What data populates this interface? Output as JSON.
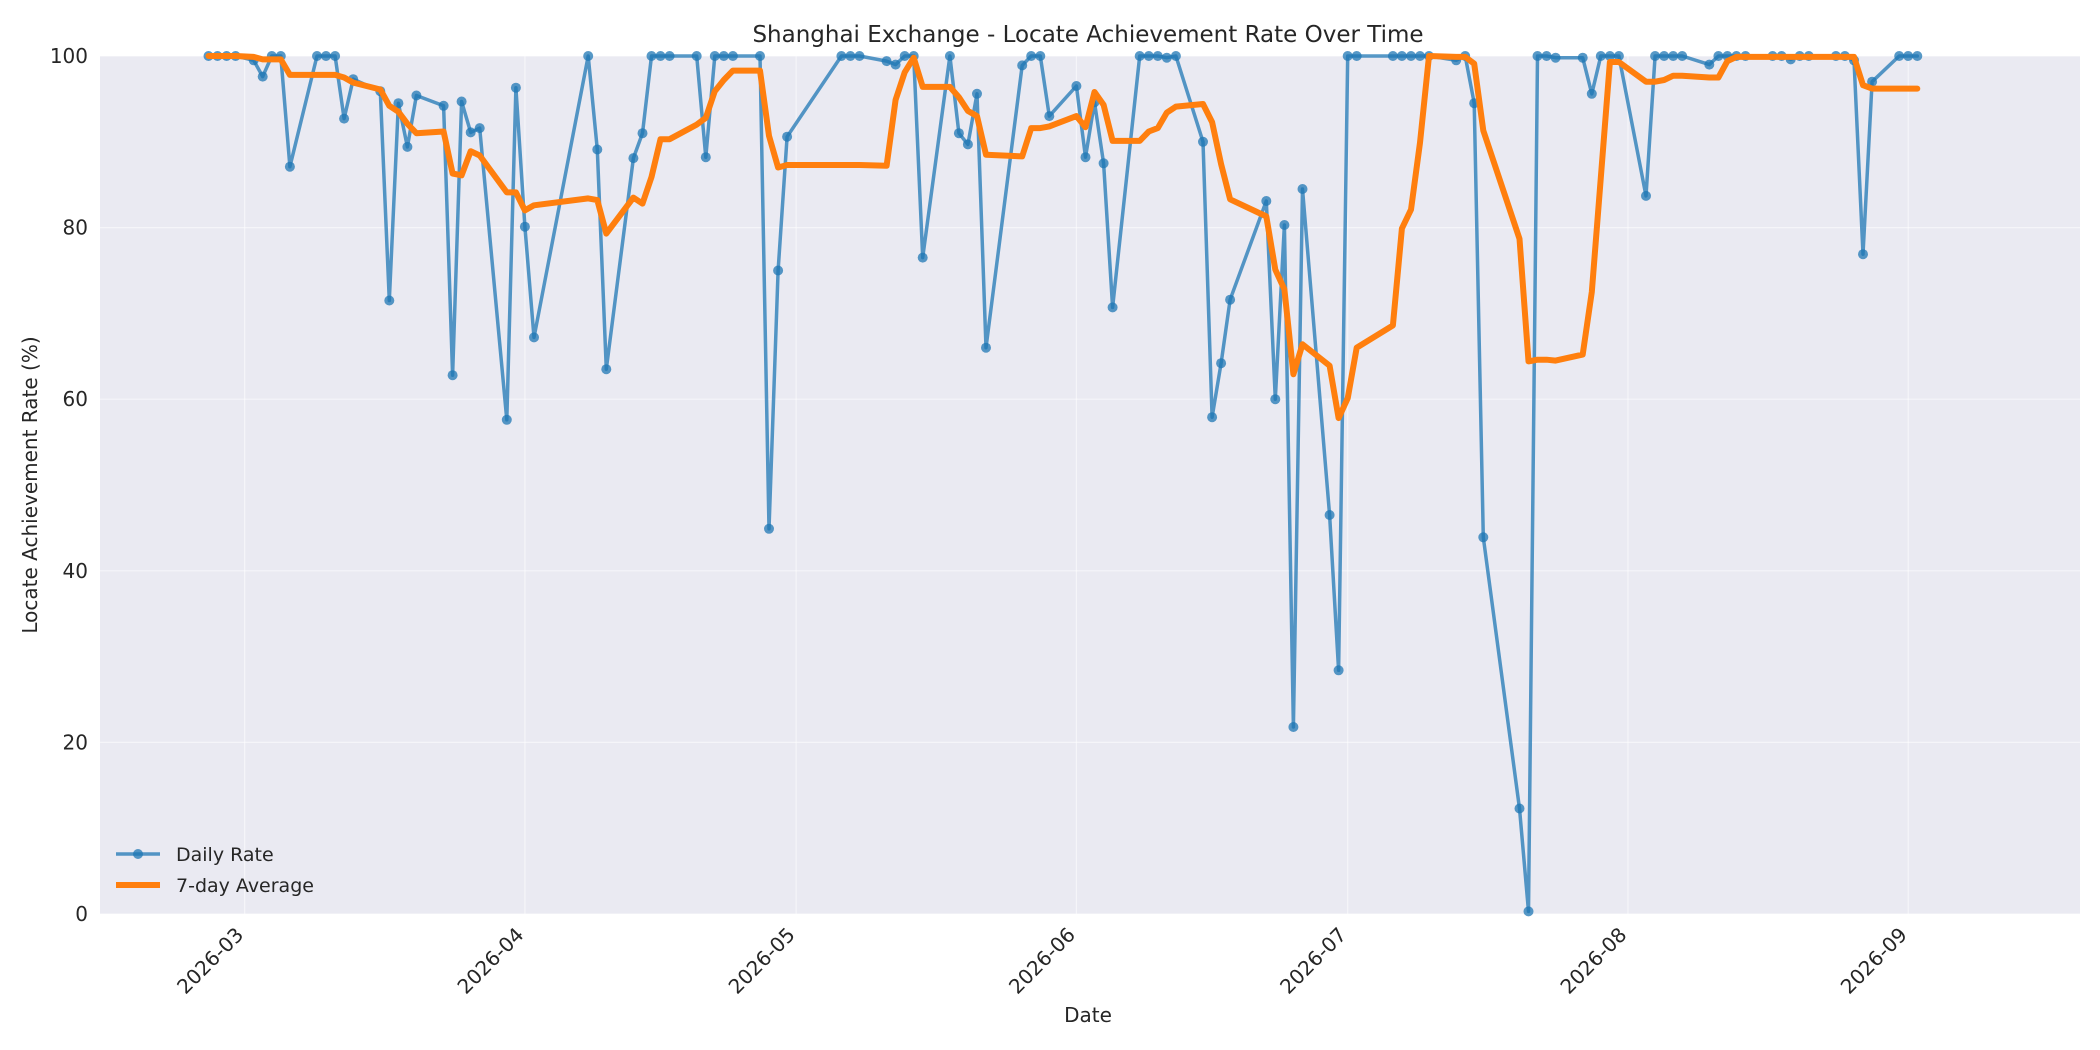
{
  "chart_data": {
    "type": "line",
    "title": "Shanghai Exchange - Locate Achievement Rate Over Time",
    "xlabel": "Date",
    "ylabel": "Locate Achievement Rate (%)",
    "xlim": [
      "2026-02-13",
      "2026-09-20"
    ],
    "ylim": [
      0,
      100
    ],
    "yticks": [
      0,
      20,
      40,
      60,
      80,
      100
    ],
    "xticks": [
      {
        "date": "2026-03-01",
        "label": "2026-03"
      },
      {
        "date": "2026-04-01",
        "label": "2026-04"
      },
      {
        "date": "2026-05-01",
        "label": "2026-05"
      },
      {
        "date": "2026-06-01",
        "label": "2026-06"
      },
      {
        "date": "2026-07-01",
        "label": "2026-07"
      },
      {
        "date": "2026-08-01",
        "label": "2026-08"
      },
      {
        "date": "2026-09-01",
        "label": "2026-09"
      }
    ],
    "grid": true,
    "legend_position": "lower-left",
    "series": [
      {
        "name": "Daily Rate",
        "color": "#1f77b4",
        "marker": "circle",
        "points": [
          [
            "2026-02-25",
            100
          ],
          [
            "2026-02-26",
            100
          ],
          [
            "2026-02-27",
            100
          ],
          [
            "2026-02-28",
            100
          ],
          [
            "2026-03-02",
            99.5
          ],
          [
            "2026-03-03",
            97.6
          ],
          [
            "2026-03-04",
            100
          ],
          [
            "2026-03-05",
            100
          ],
          [
            "2026-03-06",
            87.1
          ],
          [
            "2026-03-09",
            100
          ],
          [
            "2026-03-10",
            100
          ],
          [
            "2026-03-11",
            100
          ],
          [
            "2026-03-12",
            92.7
          ],
          [
            "2026-03-13",
            97.3
          ],
          [
            "2026-03-16",
            95.9
          ],
          [
            "2026-03-17",
            71.5
          ],
          [
            "2026-03-18",
            94.5
          ],
          [
            "2026-03-19",
            89.4
          ],
          [
            "2026-03-20",
            95.4
          ],
          [
            "2026-03-23",
            94.2
          ],
          [
            "2026-03-24",
            62.8
          ],
          [
            "2026-03-25",
            94.7
          ],
          [
            "2026-03-26",
            91.1
          ],
          [
            "2026-03-27",
            91.6
          ],
          [
            "2026-03-30",
            57.6
          ],
          [
            "2026-03-31",
            96.3
          ],
          [
            "2026-04-01",
            80.1
          ],
          [
            "2026-04-02",
            67.2
          ],
          [
            "2026-04-08",
            100
          ],
          [
            "2026-04-09",
            89.1
          ],
          [
            "2026-04-10",
            63.5
          ],
          [
            "2026-04-13",
            88.1
          ],
          [
            "2026-04-14",
            91
          ],
          [
            "2026-04-15",
            100
          ],
          [
            "2026-04-16",
            100
          ],
          [
            "2026-04-17",
            100
          ],
          [
            "2026-04-20",
            100
          ],
          [
            "2026-04-21",
            88.2
          ],
          [
            "2026-04-22",
            100
          ],
          [
            "2026-04-23",
            100
          ],
          [
            "2026-04-24",
            100
          ],
          [
            "2026-04-27",
            100
          ],
          [
            "2026-04-28",
            44.9
          ],
          [
            "2026-04-29",
            75
          ],
          [
            "2026-04-30",
            90.6
          ],
          [
            "2026-05-06",
            100
          ],
          [
            "2026-05-07",
            100
          ],
          [
            "2026-05-08",
            100
          ],
          [
            "2026-05-11",
            99.4
          ],
          [
            "2026-05-12",
            99
          ],
          [
            "2026-05-13",
            100
          ],
          [
            "2026-05-14",
            100
          ],
          [
            "2026-05-15",
            76.5
          ],
          [
            "2026-05-18",
            100
          ],
          [
            "2026-05-19",
            91
          ],
          [
            "2026-05-20",
            89.7
          ],
          [
            "2026-05-21",
            95.6
          ],
          [
            "2026-05-22",
            66
          ],
          [
            "2026-05-26",
            98.9
          ],
          [
            "2026-05-27",
            100
          ],
          [
            "2026-05-28",
            100
          ],
          [
            "2026-05-29",
            93
          ],
          [
            "2026-06-01",
            96.5
          ],
          [
            "2026-06-02",
            88.2
          ],
          [
            "2026-06-03",
            94.6
          ],
          [
            "2026-06-04",
            87.5
          ],
          [
            "2026-06-05",
            70.7
          ],
          [
            "2026-06-08",
            100
          ],
          [
            "2026-06-09",
            100
          ],
          [
            "2026-06-10",
            100
          ],
          [
            "2026-06-11",
            99.8
          ],
          [
            "2026-06-12",
            100
          ],
          [
            "2026-06-15",
            90
          ],
          [
            "2026-06-16",
            57.9
          ],
          [
            "2026-06-17",
            64.2
          ],
          [
            "2026-06-18",
            71.6
          ],
          [
            "2026-06-22",
            83.1
          ],
          [
            "2026-06-23",
            60
          ],
          [
            "2026-06-24",
            80.3
          ],
          [
            "2026-06-25",
            21.8
          ],
          [
            "2026-06-26",
            84.5
          ],
          [
            "2026-06-29",
            46.5
          ],
          [
            "2026-06-30",
            28.4
          ],
          [
            "2026-07-01",
            100
          ],
          [
            "2026-07-02",
            100
          ],
          [
            "2026-07-06",
            100
          ],
          [
            "2026-07-07",
            100
          ],
          [
            "2026-07-08",
            100
          ],
          [
            "2026-07-09",
            100
          ],
          [
            "2026-07-10",
            100
          ],
          [
            "2026-07-13",
            99.5
          ],
          [
            "2026-07-14",
            100
          ],
          [
            "2026-07-15",
            94.5
          ],
          [
            "2026-07-16",
            43.9
          ],
          [
            "2026-07-20",
            12.3
          ],
          [
            "2026-07-21",
            0.3
          ],
          [
            "2026-07-22",
            100
          ],
          [
            "2026-07-23",
            100
          ],
          [
            "2026-07-24",
            99.8
          ],
          [
            "2026-07-27",
            99.8
          ],
          [
            "2026-07-28",
            95.6
          ],
          [
            "2026-07-29",
            100
          ],
          [
            "2026-07-30",
            100
          ],
          [
            "2026-07-31",
            100
          ],
          [
            "2026-08-03",
            83.7
          ],
          [
            "2026-08-04",
            100
          ],
          [
            "2026-08-05",
            100
          ],
          [
            "2026-08-06",
            100
          ],
          [
            "2026-08-07",
            100
          ],
          [
            "2026-08-10",
            99
          ],
          [
            "2026-08-11",
            100
          ],
          [
            "2026-08-12",
            100
          ],
          [
            "2026-08-13",
            100
          ],
          [
            "2026-08-14",
            100
          ],
          [
            "2026-08-17",
            100
          ],
          [
            "2026-08-18",
            100
          ],
          [
            "2026-08-19",
            99.6
          ],
          [
            "2026-08-20",
            100
          ],
          [
            "2026-08-21",
            100
          ],
          [
            "2026-08-24",
            100
          ],
          [
            "2026-08-25",
            100
          ],
          [
            "2026-08-26",
            99.5
          ],
          [
            "2026-08-27",
            76.9
          ],
          [
            "2026-08-28",
            97
          ],
          [
            "2026-08-31",
            100
          ],
          [
            "2026-09-01",
            100
          ],
          [
            "2026-09-02",
            100
          ]
        ]
      },
      {
        "name": "7-day Average",
        "color": "#ff7f0e",
        "marker": "none",
        "points": [
          [
            "2026-02-25",
            100
          ],
          [
            "2026-02-26",
            100
          ],
          [
            "2026-02-27",
            100
          ],
          [
            "2026-02-28",
            100
          ],
          [
            "2026-03-02",
            99.9
          ],
          [
            "2026-03-03",
            99.6
          ],
          [
            "2026-03-04",
            99.6
          ],
          [
            "2026-03-05",
            99.6
          ],
          [
            "2026-03-06",
            97.8
          ],
          [
            "2026-03-09",
            97.8
          ],
          [
            "2026-03-10",
            97.8
          ],
          [
            "2026-03-11",
            97.8
          ],
          [
            "2026-03-12",
            97.5
          ],
          [
            "2026-03-13",
            96.9
          ],
          [
            "2026-03-16",
            96.1
          ],
          [
            "2026-03-17",
            94.2
          ],
          [
            "2026-03-18",
            93.5
          ],
          [
            "2026-03-19",
            92.1
          ],
          [
            "2026-03-20",
            91.0
          ],
          [
            "2026-03-23",
            91.2
          ],
          [
            "2026-03-24",
            86.3
          ],
          [
            "2026-03-25",
            86.1
          ],
          [
            "2026-03-26",
            88.9
          ],
          [
            "2026-03-27",
            88.4
          ],
          [
            "2026-03-30",
            84.1
          ],
          [
            "2026-03-31",
            84.1
          ],
          [
            "2026-04-01",
            82.0
          ],
          [
            "2026-04-02",
            82.6
          ],
          [
            "2026-04-08",
            83.4
          ],
          [
            "2026-04-09",
            83.2
          ],
          [
            "2026-04-10",
            79.3
          ],
          [
            "2026-04-13",
            83.5
          ],
          [
            "2026-04-14",
            82.8
          ],
          [
            "2026-04-15",
            85.9
          ],
          [
            "2026-04-16",
            90.3
          ],
          [
            "2026-04-17",
            90.3
          ],
          [
            "2026-04-20",
            92.0
          ],
          [
            "2026-04-21",
            92.8
          ],
          [
            "2026-04-22",
            95.9
          ],
          [
            "2026-04-23",
            97.2
          ],
          [
            "2026-04-24",
            98.3
          ],
          [
            "2026-04-27",
            98.3
          ],
          [
            "2026-04-28",
            90.7
          ],
          [
            "2026-04-29",
            87.0
          ],
          [
            "2026-04-30",
            87.3
          ],
          [
            "2026-05-06",
            87.3
          ],
          [
            "2026-05-07",
            87.3
          ],
          [
            "2026-05-08",
            87.3
          ],
          [
            "2026-05-11",
            87.2
          ],
          [
            "2026-05-12",
            94.9
          ],
          [
            "2026-05-13",
            98.1
          ],
          [
            "2026-05-14",
            99.8
          ],
          [
            "2026-05-15",
            96.4
          ],
          [
            "2026-05-18",
            96.4
          ],
          [
            "2026-05-19",
            95.2
          ],
          [
            "2026-05-20",
            93.6
          ],
          [
            "2026-05-21",
            93.0
          ],
          [
            "2026-05-22",
            88.5
          ],
          [
            "2026-05-26",
            88.3
          ],
          [
            "2026-05-27",
            91.6
          ],
          [
            "2026-05-28",
            91.6
          ],
          [
            "2026-05-29",
            91.8
          ],
          [
            "2026-06-01",
            93.0
          ],
          [
            "2026-06-02",
            91.7
          ],
          [
            "2026-06-03",
            95.8
          ],
          [
            "2026-06-04",
            94.3
          ],
          [
            "2026-06-05",
            90.1
          ],
          [
            "2026-06-08",
            90.1
          ],
          [
            "2026-06-09",
            91.2
          ],
          [
            "2026-06-10",
            91.6
          ],
          [
            "2026-06-11",
            93.4
          ],
          [
            "2026-06-12",
            94.1
          ],
          [
            "2026-06-15",
            94.4
          ],
          [
            "2026-06-16",
            92.3
          ],
          [
            "2026-06-17",
            87.4
          ],
          [
            "2026-06-18",
            83.3
          ],
          [
            "2026-06-22",
            81.3
          ],
          [
            "2026-06-23",
            75.1
          ],
          [
            "2026-06-24",
            72.8
          ],
          [
            "2026-06-25",
            62.9
          ],
          [
            "2026-06-26",
            66.4
          ],
          [
            "2026-06-29",
            63.9
          ],
          [
            "2026-06-30",
            57.8
          ],
          [
            "2026-07-01",
            60.1
          ],
          [
            "2026-07-02",
            66.0
          ],
          [
            "2026-07-06",
            68.6
          ],
          [
            "2026-07-07",
            79.9
          ],
          [
            "2026-07-08",
            82.1
          ],
          [
            "2026-07-09",
            89.9
          ],
          [
            "2026-07-10",
            100
          ],
          [
            "2026-07-13",
            99.9
          ],
          [
            "2026-07-14",
            99.9
          ],
          [
            "2026-07-15",
            99.1
          ],
          [
            "2026-07-16",
            91.3
          ],
          [
            "2026-07-20",
            78.7
          ],
          [
            "2026-07-21",
            64.4
          ],
          [
            "2026-07-22",
            64.6
          ],
          [
            "2026-07-23",
            64.6
          ],
          [
            "2026-07-24",
            64.5
          ],
          [
            "2026-07-27",
            65.2
          ],
          [
            "2026-07-28",
            72.5
          ],
          [
            "2026-07-29",
            85.8
          ],
          [
            "2026-07-30",
            99.3
          ],
          [
            "2026-07-31",
            99.3
          ],
          [
            "2026-08-03",
            97.0
          ],
          [
            "2026-08-04",
            97.0
          ],
          [
            "2026-08-05",
            97.2
          ],
          [
            "2026-08-06",
            97.7
          ],
          [
            "2026-08-07",
            97.7
          ],
          [
            "2026-08-10",
            97.5
          ],
          [
            "2026-08-11",
            97.5
          ],
          [
            "2026-08-12",
            99.4
          ],
          [
            "2026-08-13",
            99.9
          ],
          [
            "2026-08-14",
            99.9
          ],
          [
            "2026-08-17",
            99.9
          ],
          [
            "2026-08-18",
            99.9
          ],
          [
            "2026-08-19",
            99.9
          ],
          [
            "2026-08-20",
            99.9
          ],
          [
            "2026-08-21",
            99.9
          ],
          [
            "2026-08-24",
            99.9
          ],
          [
            "2026-08-25",
            99.9
          ],
          [
            "2026-08-26",
            99.9
          ],
          [
            "2026-08-27",
            96.6
          ],
          [
            "2026-08-28",
            96.2
          ],
          [
            "2026-08-31",
            96.2
          ],
          [
            "2026-09-01",
            96.2
          ],
          [
            "2026-09-02",
            96.2
          ]
        ]
      }
    ]
  }
}
